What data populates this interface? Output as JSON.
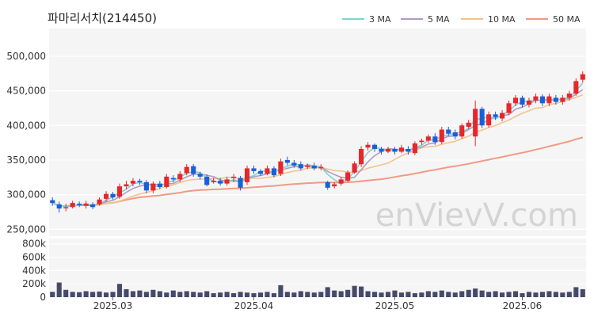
{
  "chart_data": {
    "type": "candlestick",
    "title": "파마리서치(214450)",
    "watermark": "enVievV.com",
    "legend": {
      "placement": "top-right",
      "items": [
        {
          "label": "3 MA",
          "color": "#7fd3cf"
        },
        {
          "label": "5 MA",
          "color": "#b39ac4"
        },
        {
          "label": "10 MA",
          "color": "#f2c48e"
        },
        {
          "label": "50 MA",
          "color": "#f09a85"
        }
      ]
    },
    "colors": {
      "up": "#e8262b",
      "down": "#1b5fd6",
      "volume": "#464a6a",
      "plot_bg": "#f5f5f5",
      "grid": "#ffffff"
    },
    "x_ticks": [
      {
        "label": "2025.03",
        "index": 9
      },
      {
        "label": "2025.04",
        "index": 30
      },
      {
        "label": "2025.05",
        "index": 51
      },
      {
        "label": "2025.06",
        "index": 70
      }
    ],
    "price_axis": {
      "ylim": [
        240000,
        540000
      ],
      "ticks": [
        250000,
        300000,
        350000,
        400000,
        450000,
        500000
      ],
      "tick_labels": [
        "250,000",
        "300,000",
        "350,000",
        "400,000",
        "450,000",
        "500,000"
      ]
    },
    "volume_axis": {
      "ylim": [
        0,
        880000
      ],
      "ticks": [
        0,
        200000,
        400000,
        600000,
        800000
      ],
      "tick_labels": [
        "0",
        "200k",
        "400k",
        "600k",
        "800k"
      ]
    },
    "candles": [
      [
        292000,
        288000,
        296000,
        284000
      ],
      [
        286000,
        280000,
        290000,
        274000
      ],
      [
        282000,
        282000,
        287000,
        276000
      ],
      [
        282000,
        288000,
        291000,
        280000
      ],
      [
        287000,
        285000,
        290000,
        282000
      ],
      [
        284000,
        287000,
        291000,
        280000
      ],
      [
        286000,
        282000,
        289000,
        279000
      ],
      [
        286000,
        293000,
        296000,
        284000
      ],
      [
        294000,
        301000,
        305000,
        290000
      ],
      [
        301000,
        296000,
        304000,
        293000
      ],
      [
        297000,
        312000,
        316000,
        294000
      ],
      [
        312000,
        315000,
        320000,
        308000
      ],
      [
        316000,
        320000,
        324000,
        312000
      ],
      [
        320000,
        318000,
        323000,
        314000
      ],
      [
        318000,
        306000,
        321000,
        302000
      ],
      [
        306000,
        316000,
        319000,
        302000
      ],
      [
        316000,
        311000,
        320000,
        308000
      ],
      [
        311000,
        326000,
        330000,
        309000
      ],
      [
        324000,
        322000,
        328000,
        318000
      ],
      [
        322000,
        330000,
        334000,
        318000
      ],
      [
        331000,
        340000,
        344000,
        328000
      ],
      [
        341000,
        330000,
        344000,
        326000
      ],
      [
        330000,
        326000,
        333000,
        322000
      ],
      [
        326000,
        314000,
        329000,
        312000
      ],
      [
        318000,
        320000,
        324000,
        316000
      ],
      [
        320000,
        316000,
        324000,
        313000
      ],
      [
        316000,
        322000,
        326000,
        313000
      ],
      [
        324000,
        326000,
        330000,
        318000
      ],
      [
        324000,
        310000,
        327000,
        306000
      ],
      [
        318000,
        338000,
        342000,
        314000
      ],
      [
        338000,
        334000,
        342000,
        330000
      ],
      [
        334000,
        330000,
        337000,
        327000
      ],
      [
        330000,
        338000,
        342000,
        328000
      ],
      [
        338000,
        328000,
        341000,
        325000
      ],
      [
        330000,
        348000,
        352000,
        327000
      ],
      [
        350000,
        346000,
        355000,
        342000
      ],
      [
        346000,
        342000,
        350000,
        339000
      ],
      [
        344000,
        338000,
        348000,
        335000
      ],
      [
        340000,
        342000,
        345000,
        337000
      ],
      [
        342000,
        338000,
        346000,
        335000
      ],
      [
        338000,
        340000,
        344000,
        335000
      ],
      [
        318000,
        310000,
        320000,
        307000
      ],
      [
        312000,
        315000,
        318000,
        309000
      ],
      [
        316000,
        322000,
        326000,
        313000
      ],
      [
        320000,
        332000,
        335000,
        318000
      ],
      [
        332000,
        345000,
        348000,
        330000
      ],
      [
        344000,
        366000,
        370000,
        340000
      ],
      [
        368000,
        372000,
        376000,
        364000
      ],
      [
        372000,
        366000,
        374000,
        362000
      ],
      [
        366000,
        362000,
        369000,
        358000
      ],
      [
        362000,
        366000,
        369000,
        360000
      ],
      [
        366000,
        362000,
        369000,
        358000
      ],
      [
        362000,
        368000,
        372000,
        360000
      ],
      [
        366000,
        362000,
        370000,
        358000
      ],
      [
        360000,
        374000,
        377000,
        357000
      ],
      [
        376000,
        378000,
        381000,
        372000
      ],
      [
        378000,
        384000,
        387000,
        375000
      ],
      [
        384000,
        376000,
        389000,
        372000
      ],
      [
        376000,
        394000,
        398000,
        373000
      ],
      [
        394000,
        388000,
        398000,
        385000
      ],
      [
        390000,
        384000,
        394000,
        380000
      ],
      [
        384000,
        400000,
        403000,
        381000
      ],
      [
        398000,
        404000,
        408000,
        395000
      ],
      [
        384000,
        424000,
        436000,
        370000
      ],
      [
        424000,
        400000,
        427000,
        396000
      ],
      [
        400000,
        416000,
        420000,
        397000
      ],
      [
        416000,
        412000,
        420000,
        408000
      ],
      [
        410000,
        418000,
        422000,
        406000
      ],
      [
        418000,
        432000,
        436000,
        415000
      ],
      [
        432000,
        440000,
        444000,
        428000
      ],
      [
        440000,
        430000,
        443000,
        426000
      ],
      [
        430000,
        436000,
        440000,
        426000
      ],
      [
        436000,
        442000,
        446000,
        432000
      ],
      [
        442000,
        432000,
        445000,
        428000
      ],
      [
        432000,
        442000,
        446000,
        428000
      ],
      [
        440000,
        434000,
        444000,
        430000
      ],
      [
        434000,
        440000,
        444000,
        430000
      ],
      [
        440000,
        446000,
        450000,
        436000
      ],
      [
        446000,
        464000,
        468000,
        443000
      ],
      [
        466000,
        474000,
        478000,
        462000
      ]
    ],
    "volumes": [
      80000,
      220000,
      110000,
      80000,
      75000,
      90000,
      80000,
      85000,
      70000,
      80000,
      200000,
      120000,
      90000,
      100000,
      80000,
      110000,
      90000,
      70000,
      100000,
      80000,
      90000,
      80000,
      70000,
      90000,
      60000,
      70000,
      80000,
      60000,
      80000,
      70000,
      60000,
      70000,
      80000,
      60000,
      180000,
      80000,
      70000,
      90000,
      80000,
      70000,
      80000,
      150000,
      100000,
      90000,
      110000,
      170000,
      160000,
      90000,
      80000,
      70000,
      80000,
      100000,
      70000,
      80000,
      60000,
      70000,
      90000,
      80000,
      100000,
      80000,
      70000,
      90000,
      110000,
      130000,
      100000,
      80000,
      90000,
      70000,
      80000,
      90000,
      60000,
      80000,
      70000,
      80000,
      90000,
      80000,
      70000,
      80000,
      150000,
      120000
    ]
  }
}
